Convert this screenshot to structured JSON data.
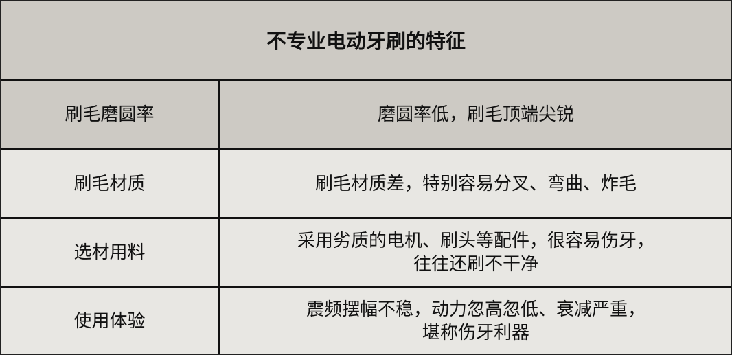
{
  "title": "不专业电动牙刷的特征",
  "rows": [
    {
      "label": "刷毛磨圆率",
      "desc": "磨圆率低，刷毛顶端尖锐"
    },
    {
      "label": "刷毛材质",
      "desc": "刷毛材质差，特别容易分叉、弯曲、炸毛"
    },
    {
      "label": "选材用料",
      "desc": "采用劣质的电机、刷头等配件，很容易伤牙，\n往往还刷不干净"
    },
    {
      "label": "使用体验",
      "desc": "震频摆幅不稳，动力忽高忽低、衰减严重，\n堪称伤牙利器"
    }
  ]
}
